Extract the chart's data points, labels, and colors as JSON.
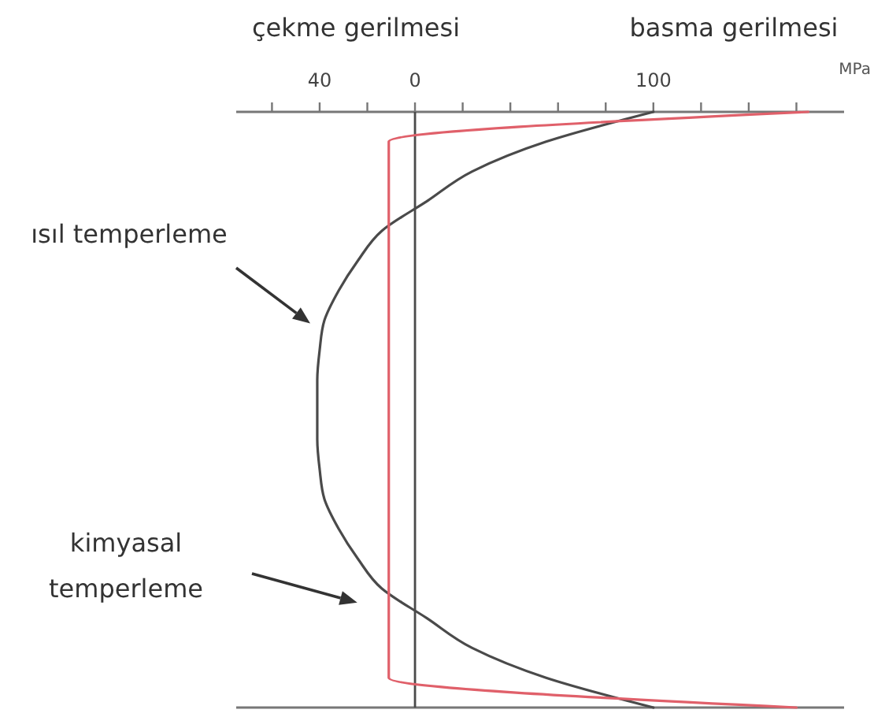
{
  "chart_data": {
    "type": "line",
    "orientation": "horizontal",
    "tick_labels": "x",
    "categories": [
      null,
      null,
      null,
      null,
      null,
      null,
      null,
      null,
      null,
      null,
      null,
      null,
      null,
      null,
      null,
      null,
      null,
      null,
      null,
      null,
      null
    ],
    "series": [
      {
        "color": "#4a4a4a",
        "values": [
          100,
          55,
          24,
          5,
          -14,
          -24,
          -32,
          -38,
          -40,
          -41,
          -41,
          -41,
          -40,
          -38,
          -32,
          -24,
          -14,
          5,
          24,
          55,
          100
        ]
      },
      {
        "color": "#e0606a",
        "values": [
          165,
          -11,
          -11,
          -11,
          -11,
          -11,
          -11,
          -11,
          -11,
          -11,
          -11,
          -11,
          -11,
          -11,
          -11,
          -11,
          -11,
          -11,
          -11,
          -11,
          160
        ]
      }
    ],
    "xlabel": "MPa",
    "xlim": [
      -75,
      180
    ],
    "xticks": [
      {
        "value": -60,
        "label": null
      },
      {
        "value": -40,
        "label": "40"
      },
      {
        "value": -20,
        "label": null
      },
      0,
      {
        "value": 20,
        "label": null
      },
      {
        "value": 40,
        "label": null
      },
      {
        "value": 60,
        "label": null
      },
      {
        "value": 80,
        "label": null
      },
      100,
      {
        "value": 120,
        "label": null
      },
      {
        "value": 140,
        "label": null
      },
      {
        "value": 160,
        "label": null
      }
    ],
    "ref_lines": [
      {
        "axis": "x",
        "value": 0,
        "color": "#4a4a4a"
      }
    ],
    "annotations": [
      "çekme gerilmesi",
      "basma gerilmesi",
      "ısıl temperleme",
      "kimyasal temperleme"
    ]
  }
}
